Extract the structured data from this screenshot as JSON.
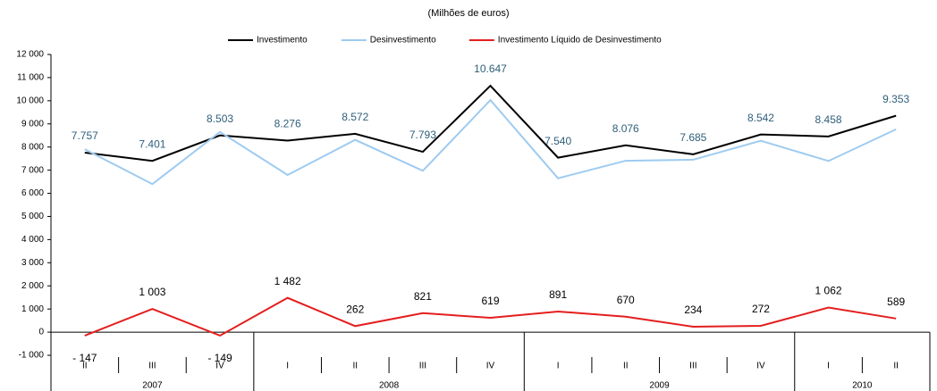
{
  "chart_data": {
    "type": "line",
    "subtitle": "(Milhões de euros)",
    "categories": [
      "II",
      "III",
      "IV",
      "I",
      "II",
      "III",
      "IV",
      "I",
      "II",
      "III",
      "IV",
      "I",
      "II"
    ],
    "category_years": [
      "2007",
      "2007",
      "2007",
      "2008",
      "2008",
      "2008",
      "2008",
      "2009",
      "2009",
      "2009",
      "2009",
      "2010",
      "2010"
    ],
    "series": [
      {
        "name": "Investimento",
        "color": "#000000",
        "label_color": "#2e5f7a",
        "values": [
          7757,
          7401,
          8503,
          8276,
          8572,
          7793,
          10647,
          7540,
          8076,
          7685,
          8542,
          8458,
          9353
        ],
        "value_labels": [
          "7.757",
          "7.401",
          "8.503",
          "8.276",
          "8.572",
          "7.793",
          "10.647",
          "7.540",
          "8.076",
          "7.685",
          "8.542",
          "8.458",
          "9.353"
        ]
      },
      {
        "name": "Desinvestimento",
        "color": "#9ecbf0",
        "values": [
          7904,
          6398,
          8652,
          6794,
          8310,
          6972,
          10028,
          6649,
          7406,
          7451,
          8270,
          7396,
          8764
        ]
      },
      {
        "name": "Investimento Líquido de Desinvestimento",
        "color": "#e41e1e",
        "label_color": "#000000",
        "values": [
          -147,
          1003,
          -149,
          1482,
          262,
          821,
          619,
          891,
          670,
          234,
          272,
          1062,
          589
        ],
        "value_labels": [
          "-  147",
          "1 003",
          "-  149",
          "1 482",
          "262",
          "821",
          "619",
          "891",
          "670",
          "234",
          "272",
          "1 062",
          "589"
        ]
      }
    ],
    "ylim": [
      -1000,
      12000
    ],
    "yticks": [
      {
        "value": -1000,
        "label": "-1 000"
      },
      0,
      {
        "value": 1000,
        "label": "1 000"
      },
      {
        "value": 2000,
        "label": "2 000"
      },
      {
        "value": 3000,
        "label": "3 000"
      },
      {
        "value": 4000,
        "label": "4 000"
      },
      {
        "value": 5000,
        "label": "5 000"
      },
      {
        "value": 6000,
        "label": "6 000"
      },
      {
        "value": 7000,
        "label": "7 000"
      },
      {
        "value": 8000,
        "label": "8 000"
      },
      {
        "value": 9000,
        "label": "9 000"
      },
      {
        "value": 10000,
        "label": "10 000"
      },
      {
        "value": 11000,
        "label": "11 000"
      },
      {
        "value": 12000,
        "label": "12 000"
      }
    ],
    "legend": "top"
  }
}
